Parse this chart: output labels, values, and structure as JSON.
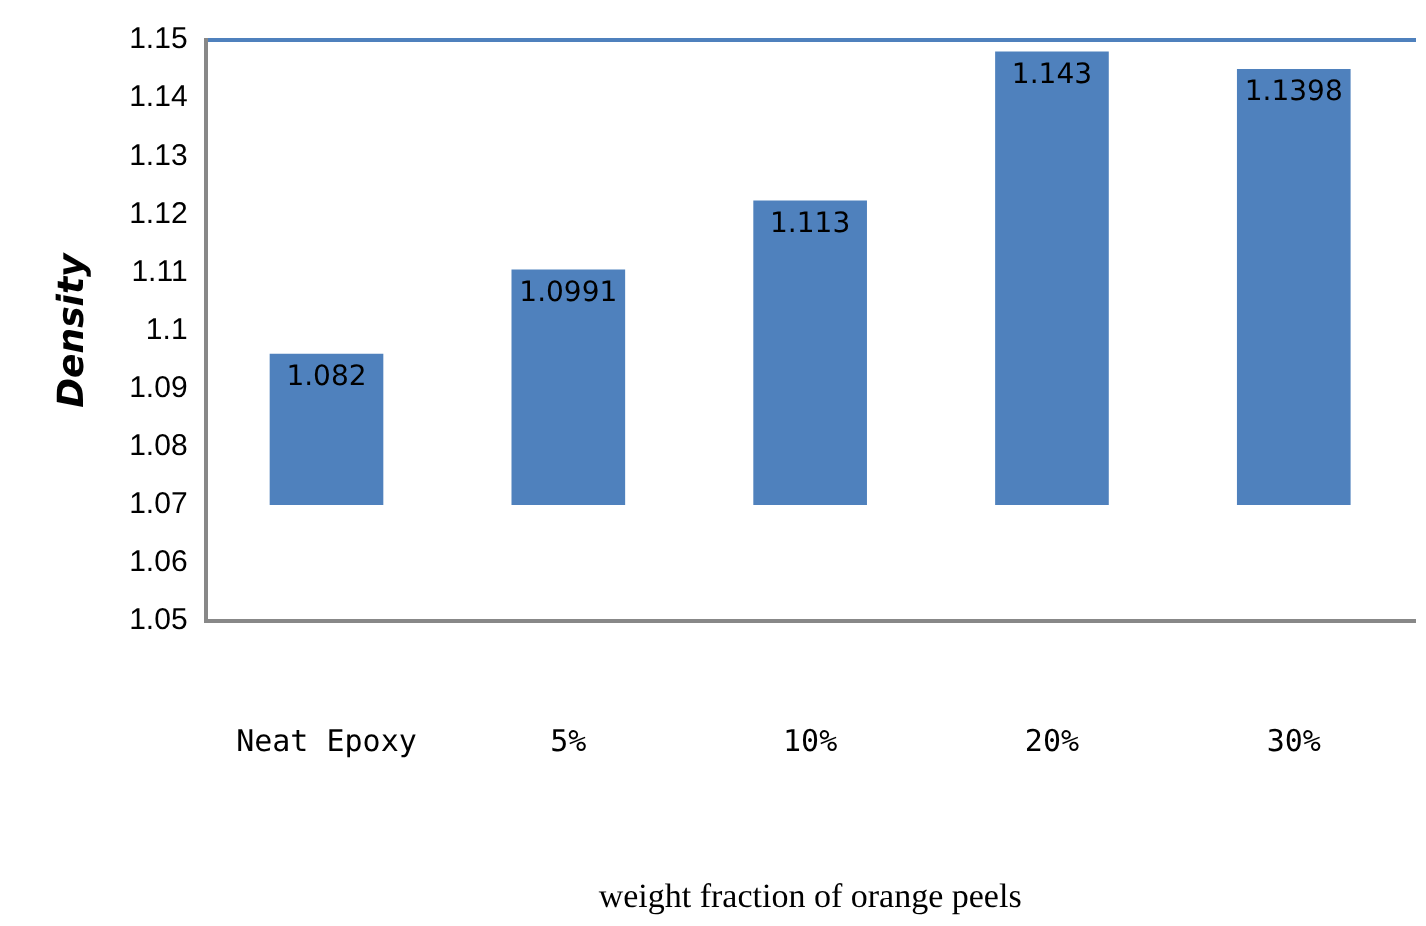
{
  "chart_data": {
    "type": "bar",
    "xlabel": "weight fraction of orange peels",
    "ylabel": "Density",
    "categories": [
      "Neat Epoxy",
      "5%",
      "10%",
      "20%",
      "30%"
    ],
    "values": [
      0.026,
      0.0405,
      0.0524,
      0.078,
      0.075
    ],
    "base": [
      1.07,
      1.07,
      1.07,
      1.07,
      1.07
    ],
    "annotations": [
      {
        "text": "1.082",
        "x": "Neat Epoxy",
        "y": 1.096
      },
      {
        "text": "1.0991",
        "x": "5%",
        "y": 1.1105
      },
      {
        "text": "1.113",
        "x": "10%",
        "y": 1.1224
      },
      {
        "text": "1.143",
        "x": "20%",
        "y": 1.148
      },
      {
        "text": "1.1398",
        "x": "30%",
        "y": 1.145
      }
    ],
    "color": "#4f81bd",
    "ylim": [
      1.05,
      1.15
    ],
    "yticks": [
      1.05,
      1.06,
      1.07,
      1.08,
      1.09,
      1.1,
      1.11,
      1.12,
      1.13,
      1.14,
      1.15
    ],
    "grid": false,
    "legend": false
  }
}
